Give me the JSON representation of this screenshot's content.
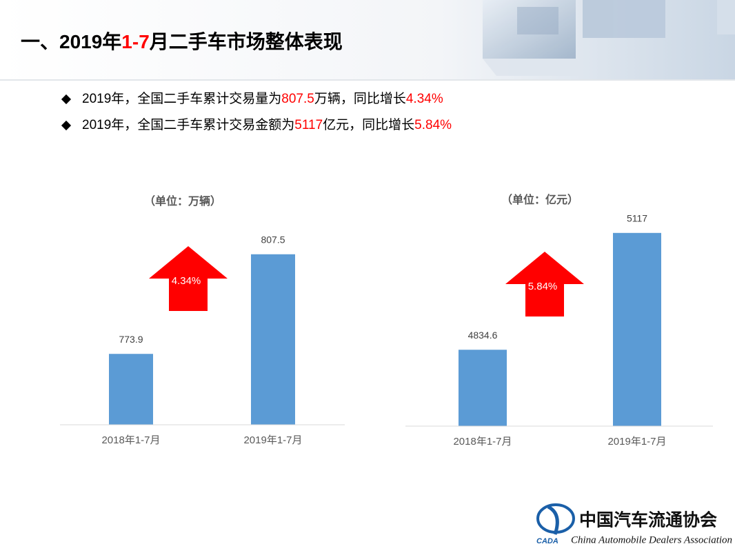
{
  "header": {
    "title": [
      {
        "text": "一、2019年"
      },
      {
        "text": "1-7",
        "color": "#ff0000"
      },
      {
        "text": "月二手车市场整体表现"
      }
    ]
  },
  "bullets": [
    [
      {
        "text": "2019年，全国二手车累计交易量为"
      },
      {
        "text": "807.5",
        "color": "#ff0000"
      },
      {
        "text": "万辆，同比增长"
      },
      {
        "text": "4.34%",
        "color": "#ff0000"
      }
    ],
    [
      {
        "text": "2019年，全国二手车累计交易金额为"
      },
      {
        "text": "5117",
        "color": "#ff0000"
      },
      {
        "text": "亿元，同比增长"
      },
      {
        "text": "5.84%",
        "color": "#ff0000"
      }
    ]
  ],
  "chart_data": [
    {
      "type": "bar",
      "subtitle": "（单位：万辆）",
      "categories": [
        "2018年1-7月",
        "2019年1-7月"
      ],
      "values": [
        773.9,
        807.5
      ],
      "color": "#5b9bd5",
      "ylim": [
        750,
        820
      ],
      "annotation": "4.34%",
      "annotation_color": "#ff0000"
    },
    {
      "type": "bar",
      "subtitle": "（单位：亿元）",
      "categories": [
        "2018年1-7月",
        "2019年1-7月"
      ],
      "values": [
        4834.6,
        5117
      ],
      "color": "#5b9bd5",
      "ylim": [
        4650,
        5150
      ],
      "annotation": "5.84%",
      "annotation_color": "#ff0000"
    }
  ],
  "footer": {
    "logo_mark": "CADA",
    "name_cn": "中国汽车流通协会",
    "name_en": "China Automobile Dealers Association"
  }
}
